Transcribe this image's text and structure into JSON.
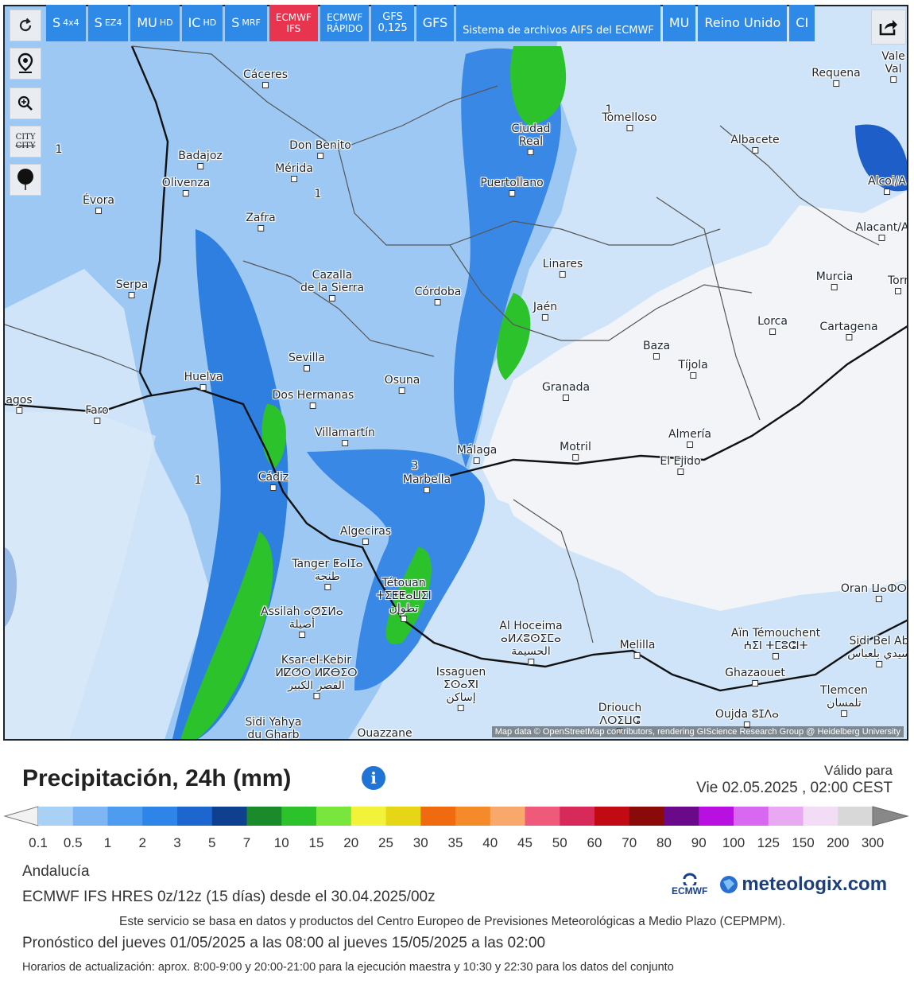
{
  "toolbar": {
    "refresh_icon": "refresh-icon",
    "buttons": [
      {
        "label": "S",
        "sub": "4x4"
      },
      {
        "label": "S",
        "sub": "EZ4"
      },
      {
        "label": "MU",
        "sub": "HD"
      },
      {
        "label": "IC",
        "sub": "HD"
      },
      {
        "label": "S",
        "sub": "MRF"
      },
      {
        "label": "ECMWF",
        "sub": "IFS",
        "active": true
      },
      {
        "label": "ECMWF",
        "sub": "RÁPIDO"
      },
      {
        "label": "GFS",
        "sub": "0,125"
      },
      {
        "label": "GFS",
        "sub": ""
      },
      {
        "label": "Sistema de archivos AIFS del ECMWF",
        "sub": ""
      },
      {
        "label": "MU",
        "sub": ""
      },
      {
        "label": "Reino Unido",
        "sub": ""
      },
      {
        "label": "CI",
        "sub": ""
      }
    ]
  },
  "side": {
    "city_toggle": "CITY",
    "city_toggle_struck": "CITY"
  },
  "map": {
    "attribution": "Map data © OpenStreetMap contributors, rendering GIScience Research Group @ Heidelberg University",
    "contour_labels": [
      "1",
      "1",
      "1",
      "1",
      "3"
    ],
    "cities": [
      {
        "name": "Cáceres"
      },
      {
        "name": "Don Benito"
      },
      {
        "name": "Mérida"
      },
      {
        "name": "Badajoz"
      },
      {
        "name": "Olivenza"
      },
      {
        "name": "Évora"
      },
      {
        "name": "Zafra"
      },
      {
        "name": "Serpa"
      },
      {
        "name": "Cazalla\nde la Sierra"
      },
      {
        "name": "Córdoba"
      },
      {
        "name": "Sevilla"
      },
      {
        "name": "Dos Hermanas"
      },
      {
        "name": "Osuna"
      },
      {
        "name": "Huelva"
      },
      {
        "name": "Faro"
      },
      {
        "name": "agos"
      },
      {
        "name": "Villamartín"
      },
      {
        "name": "Cádiz"
      },
      {
        "name": "Marbella"
      },
      {
        "name": "Málaga"
      },
      {
        "name": "Algeciras"
      },
      {
        "name": "Tanger ⵟⴰⵏⵊⴰ\nطنجة"
      },
      {
        "name": "Tétouan\nⵜⵉⵟⵟⴰⵡⵉⵏ\nتطوان"
      },
      {
        "name": "Assilah ⴰⵚⵉⵍⴰ\nأصيلة"
      },
      {
        "name": "Ksar-el-Kebir\nⵍⵇⵚⵔ ⵍⴽⴱⵉⵔ\nالقصر الكبير"
      },
      {
        "name": "Sidi Yahya\ndu Gharb"
      },
      {
        "name": "Ouazzane"
      },
      {
        "name": "Issaguen\nⵉⵙⴰⴳⵏ\nإساكن"
      },
      {
        "name": "Al Hoceima\nⴰⵍⵃⵓⵙⵉⵎⴰ\nالحسيمة"
      },
      {
        "name": "Driouch\nⴷⵔⵉⵡⵛ"
      },
      {
        "name": "Melilla"
      },
      {
        "name": "Ciudad\nReal"
      },
      {
        "name": "Puertollano"
      },
      {
        "name": "Tomelloso"
      },
      {
        "name": "Albacete"
      },
      {
        "name": "Requena"
      },
      {
        "name": "Vale\nVal"
      },
      {
        "name": "Alcoi/A"
      },
      {
        "name": "Alacant/A"
      },
      {
        "name": "Linares"
      },
      {
        "name": "Jaén"
      },
      {
        "name": "Murcia"
      },
      {
        "name": "Torr"
      },
      {
        "name": "Lorca"
      },
      {
        "name": "Cartagena"
      },
      {
        "name": "Baza"
      },
      {
        "name": "Tíjola"
      },
      {
        "name": "Granada"
      },
      {
        "name": "Motril"
      },
      {
        "name": "Almería"
      },
      {
        "name": "El Ejido"
      },
      {
        "name": "Oran ⵡⴰⵀⵔⴰⵏ"
      },
      {
        "name": "Aïn Témouchent\nⵄⵉⵏ ⵜⵎⵓⵛⵏⵜ"
      },
      {
        "name": "Sidi Bel Ab\nسيدي بلعباس"
      },
      {
        "name": "Ghazaouet"
      },
      {
        "name": "Tlemcen\nتلمسان"
      },
      {
        "name": "Oujda ⵓⵊⴷⴰ"
      }
    ]
  },
  "panel": {
    "title": "Precipitación, 24h (mm)",
    "info_label": "i",
    "valid_label": "Válido para",
    "valid_date": "Vie 02.05.2025 ,  02:00 CEST",
    "region": "Andalucía",
    "model_line": "ECMWF IFS HRES 0z/12z (15 días) desde el 30.04.2025/00z",
    "service_line": "Este servicio se basa en datos y productos del Centro Europeo de Previsiones Meteorológicas a Medio Plazo (CEPMPM).",
    "forecast_line": "Pronóstico del jueves 01/05/2025 a las 08:00 al jueves 15/05/2025 a las 02:00",
    "update_line": "Horarios de actualización: aprox. 8:00-9:00 y 20:00-21:00 para la ejecución maestra y 10:30 y 22:30 para los datos del conjunto",
    "ecmwf_logo": "ECMWF",
    "meteologix_logo": "meteologix.com"
  },
  "legend": {
    "ticks": [
      "0.1",
      "0.5",
      "1",
      "2",
      "3",
      "5",
      "7",
      "10",
      "15",
      "20",
      "25",
      "30",
      "35",
      "40",
      "45",
      "50",
      "60",
      "70",
      "80",
      "90",
      "100",
      "125",
      "150",
      "200",
      "300"
    ],
    "colors": [
      "#a9d0f5",
      "#7db6f2",
      "#4d9cf0",
      "#2f84ea",
      "#1e66cf",
      "#0f3f8f",
      "#1a8a2a",
      "#2cc22c",
      "#78e63c",
      "#f2f23a",
      "#e6d616",
      "#f06a10",
      "#f58a2a",
      "#f8a86a",
      "#f05a7a",
      "#d82a5a",
      "#c20a14",
      "#8a0a0a",
      "#6a0a8a",
      "#b810e0",
      "#d868f0",
      "#e8a8f2",
      "#f2dcf6",
      "#d8d8d8"
    ]
  }
}
